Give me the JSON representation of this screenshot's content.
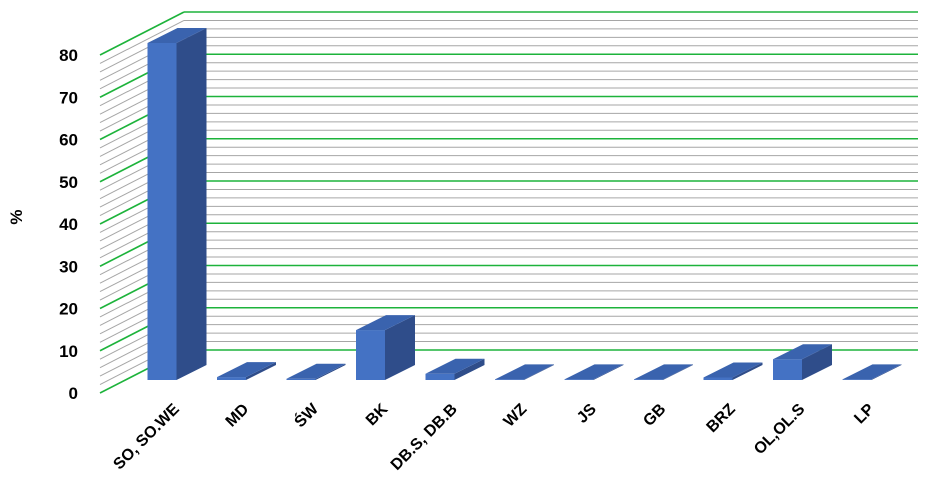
{
  "chart_data": {
    "type": "bar",
    "style": "3d-column",
    "categories": [
      "SO, SO.WE",
      "MD",
      "ŚW",
      "BK",
      "DB.S, DB.B",
      "WZ",
      "JS",
      "GB",
      "BRZ",
      "OL,OL.S",
      "LP"
    ],
    "values": [
      81,
      0.7,
      0.3,
      12,
      1.5,
      0.1,
      0.1,
      0.1,
      0.6,
      5,
      0.1
    ],
    "xlabel": "",
    "ylabel": "%",
    "ylim": [
      0,
      80
    ],
    "yticks": [
      0,
      10,
      20,
      30,
      40,
      50,
      60,
      70,
      80
    ],
    "grid": true,
    "legend": "none",
    "colors": {
      "bar_front": "#4472c4",
      "bar_side": "#2f4d8a",
      "bar_top": "#3a63ae",
      "major_grid": "#1db33b",
      "minor_grid": "#a6a6a6"
    }
  }
}
